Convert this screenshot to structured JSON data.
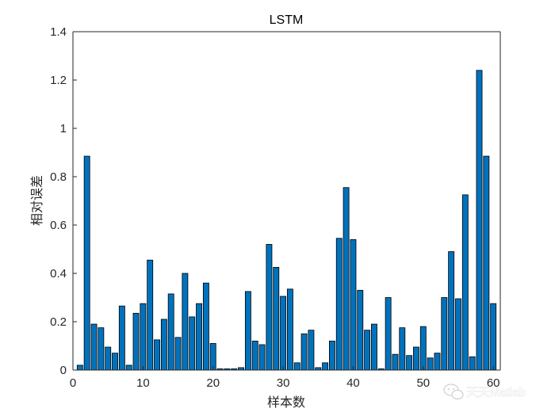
{
  "chart_data": {
    "type": "bar",
    "title": "LSTM",
    "xlabel": "样本数",
    "ylabel": "相对误差",
    "xlim": [
      0,
      61
    ],
    "ylim": [
      0,
      1.4
    ],
    "xticks": [
      0,
      10,
      20,
      30,
      40,
      50,
      60
    ],
    "yticks": [
      0,
      0.2,
      0.4,
      0.6,
      0.8,
      1,
      1.2,
      1.4
    ],
    "ytick_labels": [
      "0",
      "0.2",
      "0.4",
      "0.6",
      "0.8",
      "1",
      "1.2",
      "1.4"
    ],
    "bar_color": "#0072BD",
    "edge_color": "#000000",
    "grid": false,
    "x": [
      1,
      2,
      3,
      4,
      5,
      6,
      7,
      8,
      9,
      10,
      11,
      12,
      13,
      14,
      15,
      16,
      17,
      18,
      19,
      20,
      21,
      22,
      23,
      24,
      25,
      26,
      27,
      28,
      29,
      30,
      31,
      32,
      33,
      34,
      35,
      36,
      37,
      38,
      39,
      40,
      41,
      42,
      43,
      44,
      45,
      46,
      47,
      48,
      49,
      50,
      51,
      52,
      53,
      54,
      55,
      56,
      57,
      58,
      59,
      60
    ],
    "values": [
      0.02,
      0.885,
      0.19,
      0.175,
      0.095,
      0.07,
      0.265,
      0.02,
      0.235,
      0.275,
      0.455,
      0.125,
      0.21,
      0.315,
      0.135,
      0.4,
      0.22,
      0.275,
      0.36,
      0.11,
      0.005,
      0.005,
      0.005,
      0.01,
      0.325,
      0.12,
      0.105,
      0.52,
      0.425,
      0.305,
      0.335,
      0.03,
      0.15,
      0.165,
      0.01,
      0.03,
      0.12,
      0.545,
      0.755,
      0.54,
      0.33,
      0.165,
      0.19,
      0.005,
      0.3,
      0.065,
      0.175,
      0.06,
      0.095,
      0.18,
      0.05,
      0.07,
      0.3,
      0.49,
      0.295,
      0.725,
      0.055,
      1.24,
      0.885,
      0.275
    ]
  },
  "watermark": {
    "text": "天天Matlab",
    "icon": "wechat-icon"
  }
}
